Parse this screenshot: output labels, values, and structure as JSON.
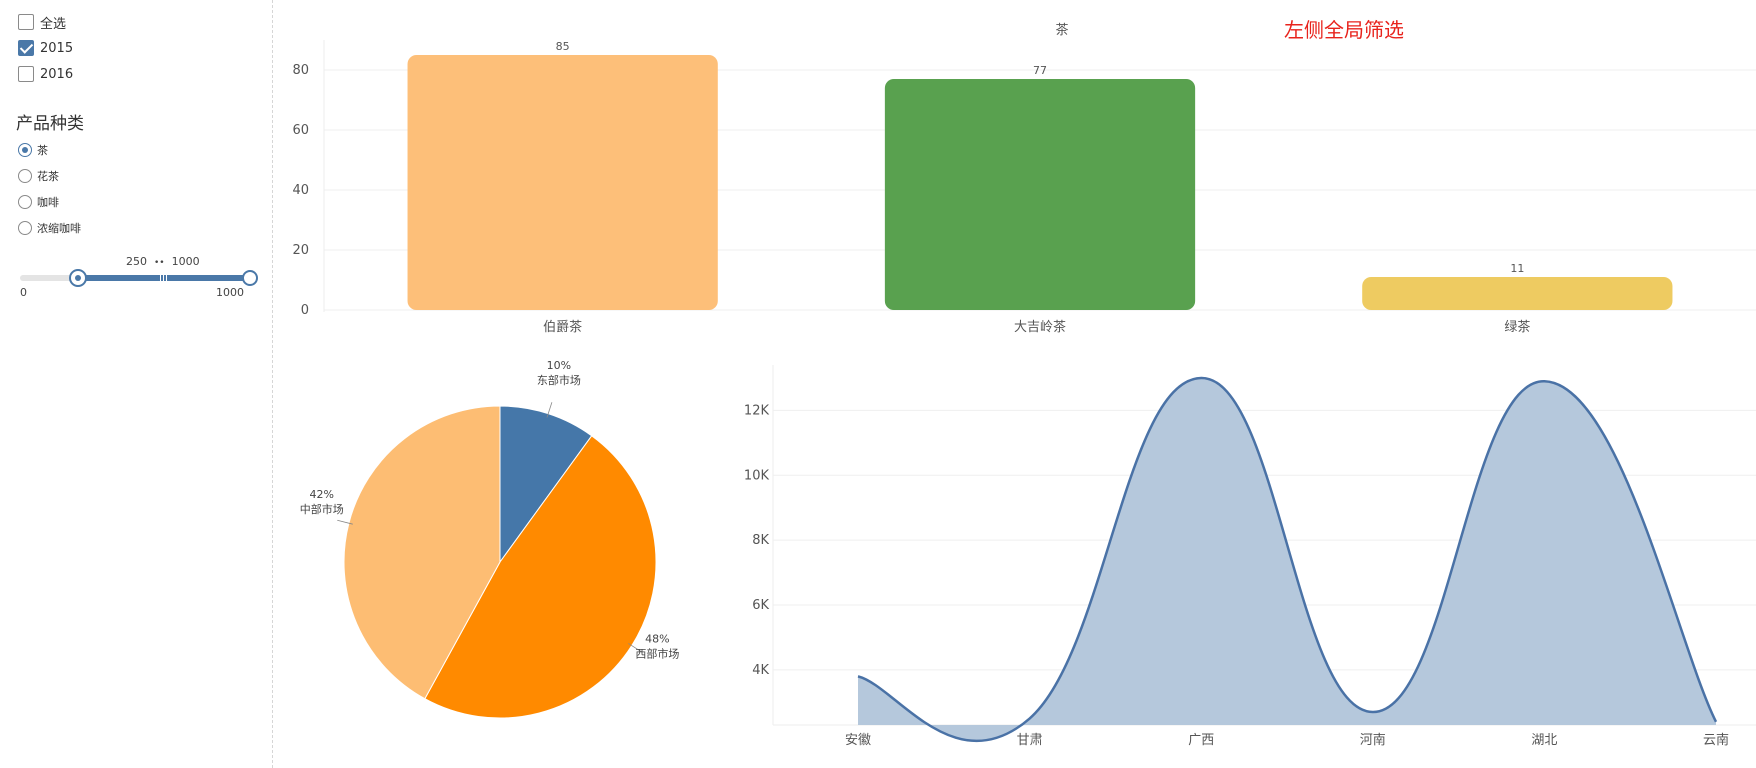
{
  "sidebar": {
    "year_filter": [
      {
        "label": "全选",
        "checked": false
      },
      {
        "label": "2015",
        "checked": true
      },
      {
        "label": "2016",
        "checked": false
      }
    ],
    "product_title": "产品种类",
    "product_options": [
      {
        "label": "茶",
        "selected": true
      },
      {
        "label": "花茶",
        "selected": false
      },
      {
        "label": "咖啡",
        "selected": false
      },
      {
        "label": "浓缩咖啡",
        "selected": false
      }
    ],
    "range_slider": {
      "min": 0,
      "max": 1000,
      "value_low": 250,
      "value_high": 1000,
      "low_text": "250",
      "high_text": "1000",
      "min_label": "0",
      "max_label": "1000"
    }
  },
  "global_filter_note": "左侧全局筛选",
  "chart_data": [
    {
      "type": "bar",
      "title": "茶",
      "categories": [
        "伯爵茶",
        "大吉岭茶",
        "绿茶"
      ],
      "values": [
        85,
        77,
        11
      ],
      "colors": [
        "#fdbf79",
        "#59a14f",
        "#eecb61"
      ],
      "ylim": [
        0,
        90
      ],
      "yticks": [
        0,
        20,
        40,
        60,
        80
      ],
      "grid": true
    },
    {
      "type": "pie",
      "slices": [
        {
          "name": "东部市场",
          "percent": 10,
          "label": "10%",
          "color": "#4577a9"
        },
        {
          "name": "西部市场",
          "percent": 48,
          "label": "48%",
          "color": "#ff8a00"
        },
        {
          "name": "中部市场",
          "percent": 42,
          "label": "42%",
          "color": "#fdbd73"
        }
      ]
    },
    {
      "type": "area",
      "categories": [
        "安徽",
        "甘肃",
        "广西",
        "河南",
        "湖北",
        "云南"
      ],
      "values": [
        3800,
        2500,
        13000,
        2700,
        12900,
        2400
      ],
      "ylim": [
        2300,
        13400
      ],
      "yticks": [
        4000,
        6000,
        8000,
        10000,
        12000
      ],
      "ytick_labels": [
        "4K",
        "6K",
        "8K",
        "10K",
        "12K"
      ],
      "line_color": "#4a72a6",
      "fill_color": "#b5c8dc",
      "grid": true
    }
  ]
}
